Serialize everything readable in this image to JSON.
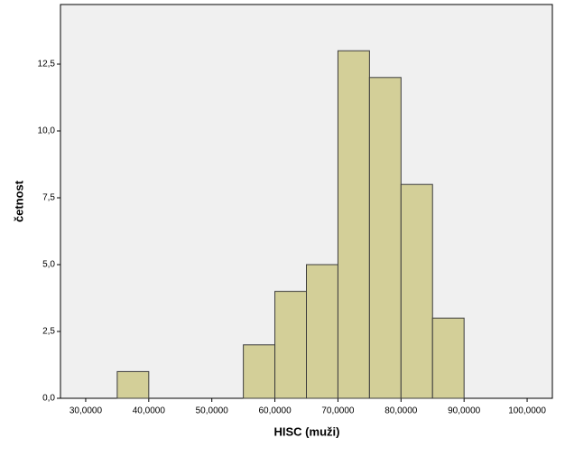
{
  "chart_data": {
    "type": "histogram",
    "x_label": "HISC (muži)",
    "y_label": "četnost",
    "bins": [
      35,
      40,
      45,
      50,
      55,
      60,
      65,
      70,
      75,
      80,
      85,
      90
    ],
    "values": [
      1,
      0,
      0,
      0,
      2,
      4,
      5,
      13,
      12,
      8,
      3
    ],
    "color": "#d3cf98",
    "edge_color": "#3c3c3c",
    "background": "#f0f0f0",
    "xlim": [
      26,
      104
    ],
    "xticks": [
      {
        "value": 30,
        "label": "30,0000"
      },
      {
        "value": 40,
        "label": "40,0000"
      },
      {
        "value": 50,
        "label": "50,0000"
      },
      {
        "value": 60,
        "label": "60,0000"
      },
      {
        "value": 70,
        "label": "70,0000"
      },
      {
        "value": 80,
        "label": "80,0000"
      },
      {
        "value": 90,
        "label": "90,0000"
      },
      {
        "value": 100,
        "label": "100,0000"
      }
    ],
    "ylim": [
      0,
      14.73
    ],
    "yticks": [
      {
        "value": 0,
        "label": "0,0"
      },
      {
        "value": 2.5,
        "label": "2,5"
      },
      {
        "value": 5,
        "label": "5,0"
      },
      {
        "value": 7.5,
        "label": "7,5"
      },
      {
        "value": 10,
        "label": "10,0"
      },
      {
        "value": 12.5,
        "label": "12,5"
      }
    ]
  }
}
